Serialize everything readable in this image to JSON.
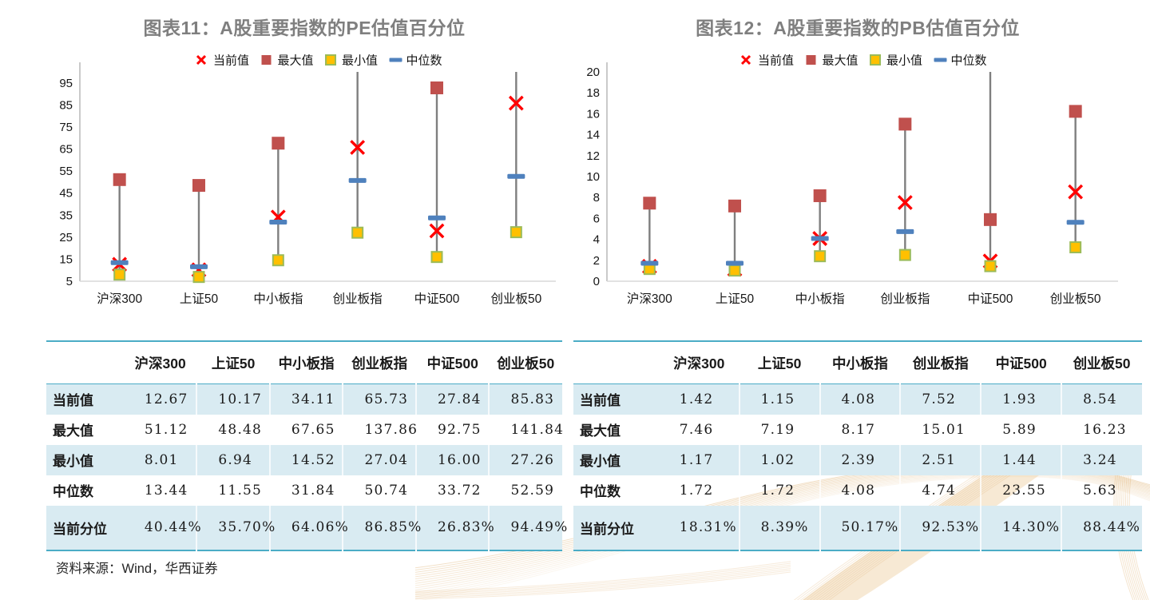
{
  "source_note": "资料来源：Wind，华西证券",
  "colors": {
    "title_gray": "#7f7f7f",
    "accent_teal": "#4bacc6",
    "band_blue": "#d9ebf2",
    "hilo_line": "#7f7f7f",
    "current_red": "#ff0000",
    "max_darkred": "#c0504d",
    "min_yellow": "#ffc000",
    "min_border_green": "#9bbb59",
    "median_blue": "#4f81bd",
    "decor_gold": "#d9a55c"
  },
  "chart_data": [
    {
      "type": "stock-hilo",
      "title": "图表11：A股重要指数的PE估值百分位",
      "categories": [
        "沪深300",
        "上证50",
        "中小板指",
        "创业板指",
        "中证500",
        "创业板50"
      ],
      "series": [
        {
          "key": "current",
          "name": "当前值",
          "marker": "x",
          "color": "#ff0000",
          "values": [
            12.67,
            10.17,
            34.11,
            65.73,
            27.84,
            85.83
          ]
        },
        {
          "key": "max",
          "name": "最大值",
          "marker": "square",
          "color": "#c0504d",
          "values": [
            51.12,
            48.48,
            67.65,
            137.86,
            92.75,
            141.84
          ]
        },
        {
          "key": "min",
          "name": "最小值",
          "marker": "square",
          "color": "#ffc000",
          "border": "#9bbb59",
          "values": [
            8.01,
            6.94,
            14.52,
            27.04,
            16.0,
            27.26
          ]
        },
        {
          "key": "median",
          "name": "中位数",
          "marker": "dash",
          "color": "#4f81bd",
          "values": [
            13.44,
            11.55,
            31.84,
            50.74,
            33.72,
            52.59
          ]
        }
      ],
      "ylim": [
        5,
        100
      ],
      "yticks": [
        5,
        15,
        25,
        35,
        45,
        55,
        65,
        75,
        85,
        95
      ],
      "grid": false,
      "legend_position": "top"
    },
    {
      "type": "stock-hilo",
      "title": "图表12：A股重要指数的PB估值百分位",
      "categories": [
        "沪深300",
        "上证50",
        "中小板指",
        "创业板指",
        "中证500",
        "创业板50"
      ],
      "series": [
        {
          "key": "current",
          "name": "当前值",
          "marker": "x",
          "color": "#ff0000",
          "values": [
            1.42,
            1.15,
            4.08,
            7.52,
            1.93,
            8.54
          ]
        },
        {
          "key": "max",
          "name": "最大值",
          "marker": "square",
          "color": "#c0504d",
          "values": [
            7.46,
            7.19,
            8.17,
            15.01,
            5.89,
            16.23
          ]
        },
        {
          "key": "min",
          "name": "最小值",
          "marker": "square",
          "color": "#ffc000",
          "border": "#9bbb59",
          "values": [
            1.17,
            1.02,
            2.39,
            2.51,
            1.44,
            3.24
          ]
        },
        {
          "key": "median",
          "name": "中位数",
          "marker": "dash",
          "color": "#4f81bd",
          "values": [
            1.72,
            1.72,
            4.08,
            4.74,
            23.55,
            5.63
          ]
        }
      ],
      "ylim": [
        0,
        20
      ],
      "yticks": [
        0,
        2,
        4,
        6,
        8,
        10,
        12,
        14,
        16,
        18,
        20
      ],
      "grid": false,
      "legend_position": "top"
    }
  ],
  "tables": [
    {
      "corner": "",
      "columns": [
        "沪深300",
        "上证50",
        "中小板指",
        "创业板指",
        "中证500",
        "创业板50"
      ],
      "rows": [
        {
          "label": "当前值",
          "values": [
            "12.67",
            "10.17",
            "34.11",
            "65.73",
            "27.84",
            "85.83"
          ]
        },
        {
          "label": "最大值",
          "values": [
            "51.12",
            "48.48",
            "67.65",
            "137.86",
            "92.75",
            "141.84"
          ]
        },
        {
          "label": "最小值",
          "values": [
            "8.01",
            "6.94",
            "14.52",
            "27.04",
            "16.00",
            "27.26"
          ]
        },
        {
          "label": "中位数",
          "values": [
            "13.44",
            "11.55",
            "31.84",
            "50.74",
            "33.72",
            "52.59"
          ]
        },
        {
          "label": "当前分位",
          "values": [
            "40.44%",
            "35.70%",
            "64.06%",
            "86.85%",
            "26.83%",
            "94.49%"
          ]
        }
      ]
    },
    {
      "corner": "",
      "columns": [
        "沪深300",
        "上证50",
        "中小板指",
        "创业板指",
        "中证500",
        "创业板50"
      ],
      "rows": [
        {
          "label": "当前值",
          "values": [
            "1.42",
            "1.15",
            "4.08",
            "7.52",
            "1.93",
            "8.54"
          ]
        },
        {
          "label": "最大值",
          "values": [
            "7.46",
            "7.19",
            "8.17",
            "15.01",
            "5.89",
            "16.23"
          ]
        },
        {
          "label": "最小值",
          "values": [
            "1.17",
            "1.02",
            "2.39",
            "2.51",
            "1.44",
            "3.24"
          ]
        },
        {
          "label": "中位数",
          "values": [
            "1.72",
            "1.72",
            "4.08",
            "4.74",
            "23.55",
            "5.63"
          ]
        },
        {
          "label": "当前分位",
          "values": [
            "18.31%",
            "8.39%",
            "50.17%",
            "92.53%",
            "14.30%",
            "88.44%"
          ]
        }
      ]
    }
  ]
}
